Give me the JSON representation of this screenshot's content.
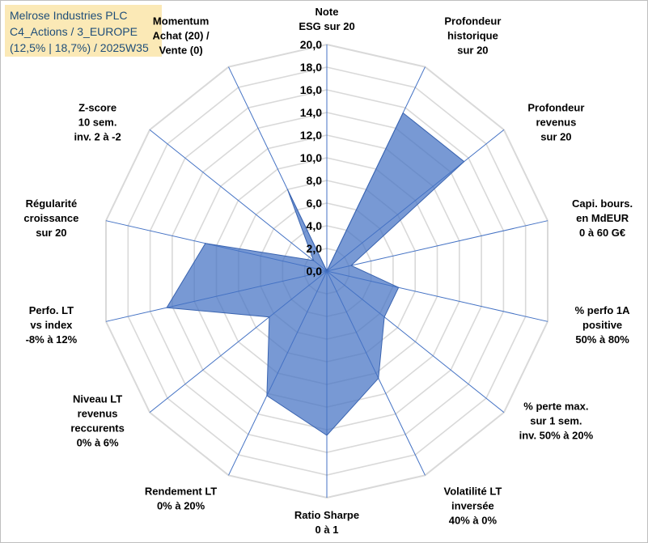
{
  "header": {
    "line1": "Melrose Industries PLC",
    "line2": "C4_Actions / 3_EUROPE",
    "line3": "(12,5% | 18,7%) / 2025W35"
  },
  "chart_data": {
    "type": "radar",
    "rmin": 0,
    "rmax": 20,
    "tick_step": 2,
    "ticks": [
      "0,0",
      "2,0",
      "4,0",
      "6,0",
      "8,0",
      "10,0",
      "12,0",
      "14,0",
      "16,0",
      "18,0",
      "20,0"
    ],
    "fill_color": "#4472c4",
    "grid_color": "#d9d9d9",
    "axis_color": "#4472c4",
    "axes": [
      {
        "label": [
          "Note",
          "ESG sur 20"
        ],
        "value": 0
      },
      {
        "label": [
          "Profondeur",
          "historique",
          "sur 20"
        ],
        "value": 15.5
      },
      {
        "label": [
          "Profondeur",
          "revenus",
          "sur 20"
        ],
        "value": 15.5
      },
      {
        "label": [
          "Capi. bours.",
          "en MdEUR",
          "0 à 60 G€"
        ],
        "value": 2.2
      },
      {
        "label": [
          "% perfo 1A",
          "positive",
          "50% à 80%"
        ],
        "value": 6.5
      },
      {
        "label": [
          "% perte max.",
          "sur 1 sem.",
          "inv. 50% à 20%"
        ],
        "value": 6.5
      },
      {
        "label": [
          "Volatilité LT",
          "inversée",
          "40% à 0%"
        ],
        "value": 10.5
      },
      {
        "label": [
          "Ratio Sharpe",
          "0 à 1"
        ],
        "value": 14.5
      },
      {
        "label": [
          "Rendement LT",
          "0% à 20%"
        ],
        "value": 12.2
      },
      {
        "label": [
          "Niveau LT",
          "revenus",
          "reccurents",
          "0% à 6%"
        ],
        "value": 6.5
      },
      {
        "label": [
          "Perfo. LT",
          "vs index",
          "-8% à 12%"
        ],
        "value": 14.5
      },
      {
        "label": [
          "Régularité",
          "croissance",
          "sur 20"
        ],
        "value": 11.0
      },
      {
        "label": [
          "Z-score",
          "10 sem.",
          "inv. 2 à -2"
        ],
        "value": 1.5
      },
      {
        "label": [
          "Momentum",
          "Achat (20) /",
          "Vente (0)"
        ],
        "value": 8.0
      }
    ]
  }
}
